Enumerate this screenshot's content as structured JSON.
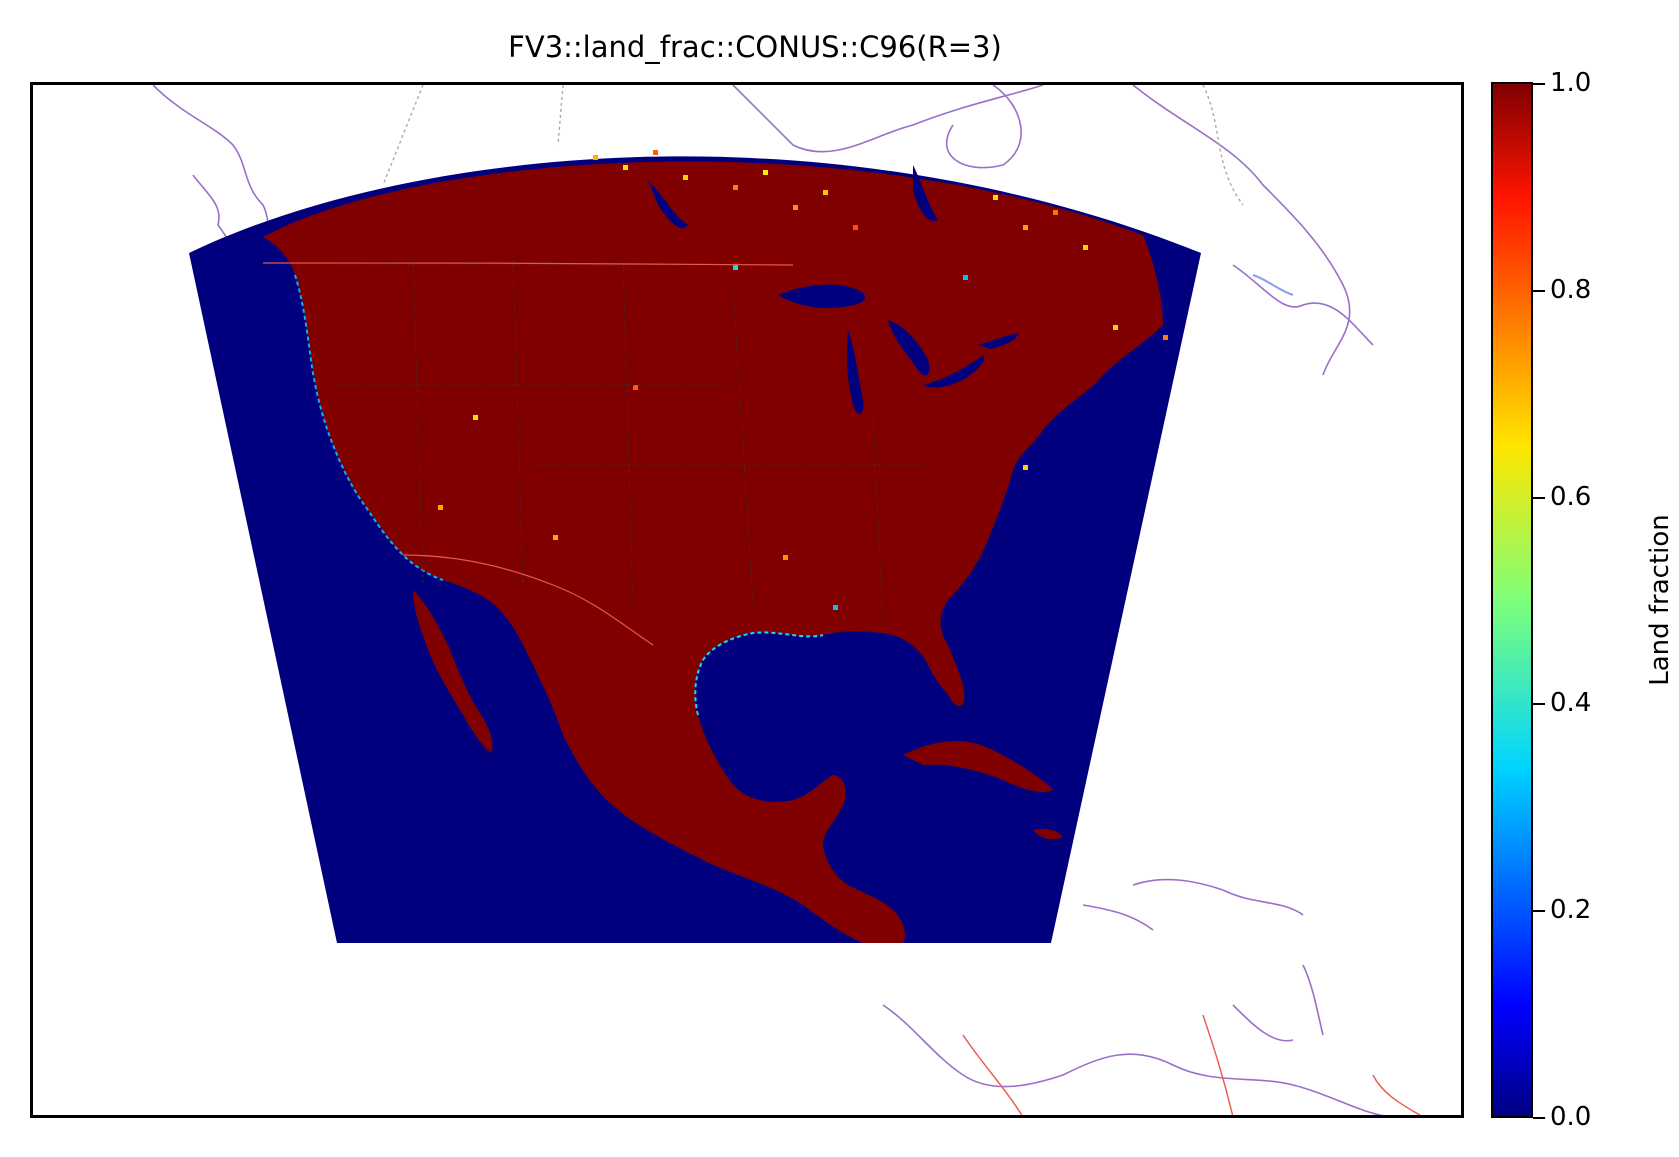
{
  "title": "FV3::land_frac::CONUS::C96(R=3)",
  "colorbar": {
    "label": "Land fraction",
    "colormap": "jet",
    "range": [
      0.0,
      1.0
    ],
    "ticks": [
      "0.0",
      "0.2",
      "0.4",
      "0.6",
      "0.8",
      "1.0"
    ]
  },
  "colors": {
    "ocean": "#00007f",
    "land": "#800000",
    "coastline": "#9b6fc8",
    "country_border": "#e8584a",
    "state_border": "#333333",
    "lakes": "#8f9bf0"
  }
}
